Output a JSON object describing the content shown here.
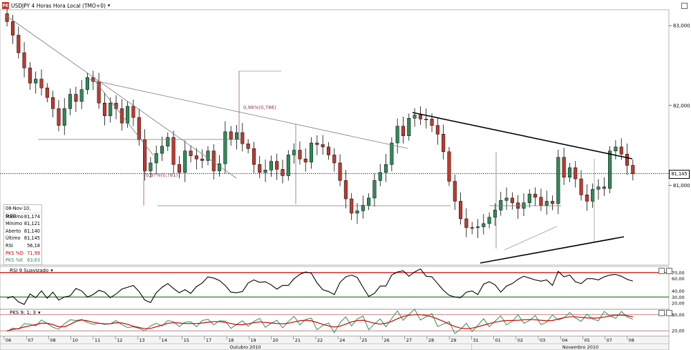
{
  "title": "USDJPY 4 Horas Hora Local (TMO+0)",
  "logo_text": "PE",
  "colors": {
    "candle": "#2e8b57",
    "bear": "#c0392b",
    "grid": "#dddddd",
    "resistance": "#cc0000",
    "support": "#2e7d32",
    "pks_d": "#cc0000",
    "pks_k": "#2e8b57"
  },
  "info_box": {
    "date": "08-Nov-10, 0:00",
    "rows": [
      {
        "label": "Máximo",
        "value": "81,174",
        "color": "#000000"
      },
      {
        "label": "Mínimo",
        "value": "81,121",
        "color": "#000000"
      },
      {
        "label": "Aberto",
        "value": "81,140",
        "color": "#000000"
      },
      {
        "label": "Último",
        "value": "81,145",
        "color": "#000000"
      },
      {
        "label": "RSI",
        "value": "56,18",
        "color": "#000000"
      },
      {
        "label": "PKS %D",
        "value": "71,99",
        "color": "#cc0000"
      },
      {
        "label": "PKS %K",
        "value": "63,63",
        "color": "#2e8b57"
      }
    ]
  },
  "last_price": "81,145",
  "annotations": [
    {
      "text": "0,96%(0,786)",
      "color": "#8b3a62"
    },
    {
      "text": "0,9?%(0,?81)",
      "color": "#8b3a62"
    }
  ],
  "rsi_title": "RSI 9 Suavizado",
  "pks_title": "PKS 9; 1; 3",
  "chart_data": [
    {
      "type": "candlestick",
      "title": "USDJPY 4 Horas Hora Local (TMO+0)",
      "ylim": [
        80.0,
        83.2
      ],
      "yticks": [
        "83,000",
        "82,000",
        "81,000"
      ],
      "x_day_labels": [
        "06",
        "07",
        "08",
        "10",
        "11",
        "12",
        "13",
        "14",
        "15",
        "17",
        "18",
        "19",
        "20",
        "21",
        "22",
        "24",
        "25",
        "26",
        "27",
        "28",
        "29",
        "31",
        "01",
        "02",
        "03",
        "04",
        "05",
        "07",
        "08"
      ],
      "month_labels": [
        "Outubro 2010",
        "Novembro 2010"
      ],
      "close": [
        83.05,
        82.88,
        82.66,
        82.47,
        82.28,
        82.33,
        82.22,
        82.1,
        81.96,
        81.75,
        81.96,
        82.14,
        82.05,
        82.2,
        82.35,
        82.3,
        82.03,
        81.87,
        82.03,
        81.96,
        81.78,
        81.99,
        81.85,
        81.57,
        81.18,
        81.28,
        81.4,
        81.49,
        81.6,
        81.26,
        81.16,
        81.43,
        81.37,
        81.33,
        81.31,
        81.43,
        81.18,
        81.27,
        81.67,
        81.58,
        81.66,
        81.52,
        81.46,
        81.26,
        81.16,
        81.19,
        81.3,
        81.2,
        81.12,
        81.38,
        81.44,
        81.33,
        81.29,
        81.53,
        81.51,
        81.48,
        81.38,
        81.28,
        81.06,
        80.83,
        80.65,
        80.68,
        80.75,
        80.84,
        81.06,
        81.16,
        81.26,
        81.53,
        81.74,
        81.62,
        81.84,
        81.88,
        81.83,
        81.83,
        81.75,
        81.64,
        81.42,
        81.05,
        80.8,
        80.58,
        80.47,
        80.47,
        80.48,
        80.52,
        80.6,
        80.69,
        80.81,
        80.84,
        80.78,
        80.71,
        80.78,
        80.89,
        80.85,
        80.75,
        80.8,
        80.77,
        81.35,
        81.1,
        81.22,
        81.08,
        80.88,
        80.8,
        80.95,
        80.98,
        80.96,
        81.43,
        81.48,
        81.39,
        81.25,
        81.145
      ]
    },
    {
      "type": "line",
      "name": "RSI 9 Suavizado",
      "ylim": [
        10,
        80
      ],
      "yticks": [
        "70,00",
        "60,00",
        "40,00",
        "30,00",
        "20,00"
      ],
      "levels": [
        70,
        30
      ],
      "values": [
        28,
        31,
        22,
        18,
        35,
        29,
        40,
        28,
        38,
        25,
        30,
        32,
        44,
        40,
        30,
        34,
        41,
        38,
        29,
        35,
        43,
        46,
        49,
        39,
        25,
        21,
        37,
        46,
        52,
        44,
        37,
        42,
        36,
        47,
        53,
        63,
        61,
        57,
        49,
        38,
        37,
        39,
        53,
        58,
        54,
        55,
        50,
        43,
        49,
        49,
        60,
        67,
        71,
        69,
        53,
        42,
        39,
        34,
        54,
        63,
        66,
        62,
        46,
        31,
        36,
        48,
        48,
        66,
        71,
        73,
        64,
        71,
        76,
        64,
        63,
        52,
        41,
        33,
        30,
        29,
        38,
        40,
        34,
        51,
        55,
        50,
        38,
        48,
        52,
        59,
        64,
        61,
        58,
        56,
        58,
        49,
        72,
        63,
        66,
        55,
        52,
        60,
        60,
        58,
        63,
        66,
        67,
        64,
        59,
        56
      ]
    },
    {
      "type": "line",
      "name": "PKS 9; 1; 3",
      "ylim": [
        0,
        100
      ],
      "yticks": [
        "80,00",
        "20,00"
      ],
      "levels": [
        80,
        20
      ],
      "series": [
        {
          "name": "PKS %D",
          "values": [
            20,
            25,
            28,
            34,
            39,
            43,
            48,
            48,
            43,
            35,
            35,
            44,
            55,
            60,
            57,
            52,
            48,
            46,
            46,
            50,
            49,
            44,
            37,
            32,
            28,
            29,
            35,
            41,
            48,
            50,
            49,
            47,
            47,
            47,
            49,
            52,
            54,
            54,
            52,
            47,
            43,
            43,
            46,
            50,
            53,
            51,
            49,
            47,
            46,
            48,
            53,
            57,
            59,
            57,
            51,
            44,
            38,
            34,
            37,
            45,
            53,
            58,
            59,
            54,
            48,
            45,
            48,
            55,
            65,
            73,
            78,
            80,
            80,
            77,
            72,
            64,
            55,
            45,
            36,
            30,
            28,
            30,
            35,
            41,
            47,
            52,
            56,
            58,
            58,
            59,
            61,
            62,
            61,
            59,
            57,
            58,
            64,
            69,
            72,
            72,
            70,
            68,
            67,
            68,
            71,
            75,
            78,
            78,
            76,
            72
          ]
        },
        {
          "name": "PKS %K",
          "values": [
            18,
            30,
            26,
            46,
            45,
            38,
            60,
            47,
            33,
            26,
            46,
            61,
            58,
            62,
            51,
            44,
            49,
            44,
            46,
            58,
            43,
            32,
            35,
            29,
            20,
            38,
            48,
            38,
            58,
            54,
            36,
            52,
            54,
            35,
            58,
            63,
            42,
            57,
            56,
            29,
            44,
            57,
            37,
            55,
            66,
            33,
            48,
            59,
            31,
            54,
            74,
            42,
            62,
            67,
            24,
            40,
            49,
            13,
            50,
            72,
            38,
            64,
            75,
            24,
            46,
            64,
            35,
            66,
            94,
            59,
            81,
            100,
            60,
            72,
            84,
            36,
            45,
            54,
            10,
            26,
            48,
            17,
            40,
            65,
            35,
            56,
            76,
            42,
            55,
            80,
            48,
            58,
            77,
            43,
            52,
            79,
            60,
            68,
            88,
            68,
            55,
            82,
            64,
            57,
            92,
            76,
            66,
            92,
            72,
            63
          ]
        }
      ]
    }
  ]
}
